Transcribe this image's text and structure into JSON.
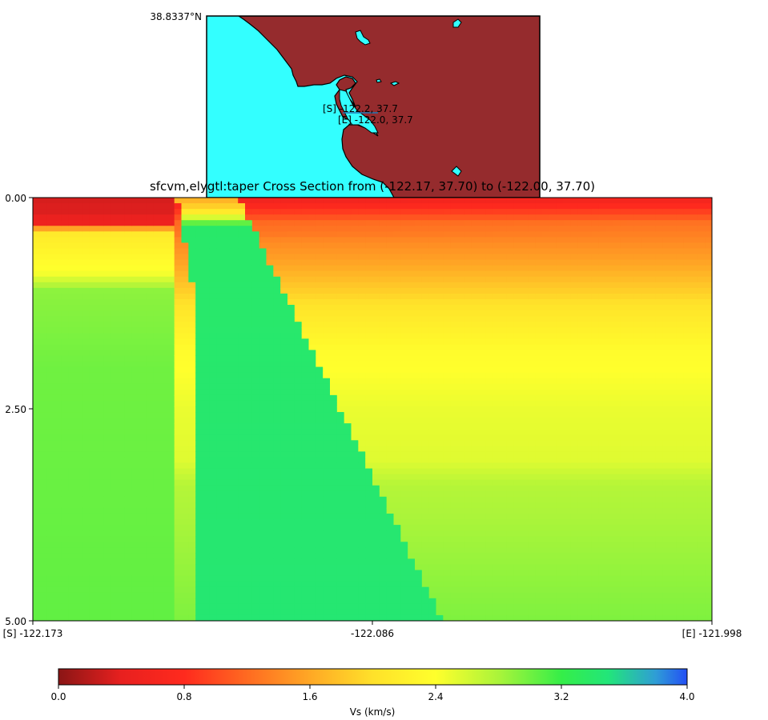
{
  "chart_data": [
    {
      "type": "map",
      "corner_label": "38.8337°N",
      "annotations": [
        "[S] -122.2, 37.7",
        "[E] -122.0, 37.7"
      ],
      "colors": {
        "ocean": "#33ffff",
        "land": "#952b2d",
        "coastline": "#000000"
      }
    },
    {
      "type": "heatmap",
      "title": "sfcvm,elygtl:taper Cross Section from (-122.17, 37.70) to (-122.00, 37.70)",
      "x_ticks": [
        "[S] -122.173",
        "-122.086",
        "[E] -121.998"
      ],
      "y_ticks": [
        "0.00",
        "2.50",
        "5.00"
      ],
      "xlim": [
        -122.173,
        -121.998
      ],
      "ylim": [
        0,
        5
      ],
      "colorbar": {
        "label": "Vs (km/s)",
        "ticks": [
          "0.0",
          "0.8",
          "1.6",
          "2.4",
          "3.2",
          "4.0"
        ],
        "range": [
          0,
          4.0
        ],
        "stops": [
          {
            "v": 0.0,
            "color": "#8a1515"
          },
          {
            "v": 0.4,
            "color": "#e8201f"
          },
          {
            "v": 0.8,
            "color": "#ff2a1e"
          },
          {
            "v": 1.2,
            "color": "#ff6a21"
          },
          {
            "v": 1.6,
            "color": "#ffa825"
          },
          {
            "v": 2.0,
            "color": "#ffe12a"
          },
          {
            "v": 2.4,
            "color": "#ffff2c"
          },
          {
            "v": 2.8,
            "color": "#aaf43a"
          },
          {
            "v": 3.2,
            "color": "#35ee48"
          },
          {
            "v": 3.5,
            "color": "#22e57a"
          },
          {
            "v": 3.8,
            "color": "#2f9dd6"
          },
          {
            "v": 4.0,
            "color": "#234ff5"
          }
        ]
      },
      "profiles": {
        "west": [
          [
            0,
            0.3
          ],
          [
            0.3,
            0.5
          ],
          [
            0.4,
            2.1
          ],
          [
            0.9,
            2.45
          ],
          [
            1.1,
            2.9
          ],
          [
            2.0,
            3.0
          ],
          [
            5.0,
            3.05
          ]
        ],
        "east": [
          [
            0,
            0.55
          ],
          [
            0.3,
            1.25
          ],
          [
            0.8,
            1.6
          ],
          [
            1.3,
            2.05
          ],
          [
            1.8,
            2.35
          ],
          [
            2.5,
            2.5
          ],
          [
            3.1,
            2.55
          ],
          [
            3.4,
            2.75
          ],
          [
            5.0,
            2.95
          ]
        ],
        "root": [
          [
            0,
            1.6
          ],
          [
            0.15,
            2.0
          ],
          [
            0.35,
            3.4
          ],
          [
            5.0,
            3.45
          ]
        ]
      }
    }
  ]
}
